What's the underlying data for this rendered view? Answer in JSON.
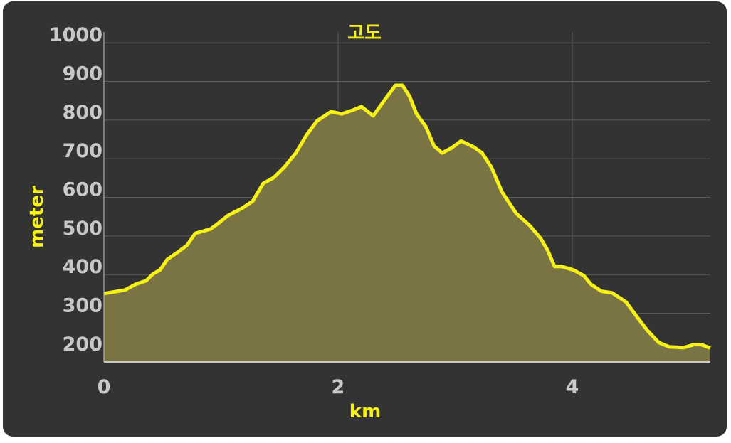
{
  "chart_data": {
    "type": "area",
    "title": "고도",
    "x_label": "km",
    "y_label": "meter",
    "x": [
      0,
      0.18,
      0.27,
      0.36,
      0.42,
      0.48,
      0.54,
      0.63,
      0.71,
      0.78,
      0.91,
      0.97,
      1.06,
      1.18,
      1.27,
      1.36,
      1.45,
      1.54,
      1.64,
      1.73,
      1.82,
      1.94,
      2.03,
      2.12,
      2.2,
      2.3,
      2.4,
      2.49,
      2.55,
      2.61,
      2.67,
      2.75,
      2.82,
      2.89,
      2.97,
      3.05,
      3.16,
      3.23,
      3.31,
      3.4,
      3.52,
      3.64,
      3.73,
      3.79,
      3.85,
      3.91,
      4.01,
      4.1,
      4.16,
      4.25,
      4.34,
      4.46,
      4.55,
      4.64,
      4.74,
      4.83,
      4.95,
      5.04,
      5.1,
      5.18
    ],
    "values": [
      351,
      360,
      375,
      384,
      402,
      412,
      439,
      458,
      476,
      507,
      518,
      531,
      553,
      572,
      590,
      636,
      651,
      678,
      715,
      761,
      798,
      822,
      816,
      825,
      835,
      811,
      853,
      890,
      890,
      862,
      816,
      783,
      733,
      715,
      728,
      746,
      730,
      715,
      678,
      614,
      559,
      526,
      494,
      463,
      421,
      421,
      412,
      397,
      375,
      357,
      353,
      329,
      292,
      256,
      224,
      213,
      211,
      219,
      219,
      210
    ],
    "color": "#f5f017",
    "fill": "#7a7444",
    "xlim": [
      0,
      5.18
    ],
    "ylim": [
      174,
      1028
    ],
    "xticks": [
      0,
      2,
      4
    ],
    "yticks": [
      200,
      300,
      400,
      500,
      600,
      700,
      800,
      900,
      1000
    ],
    "grid": true
  }
}
